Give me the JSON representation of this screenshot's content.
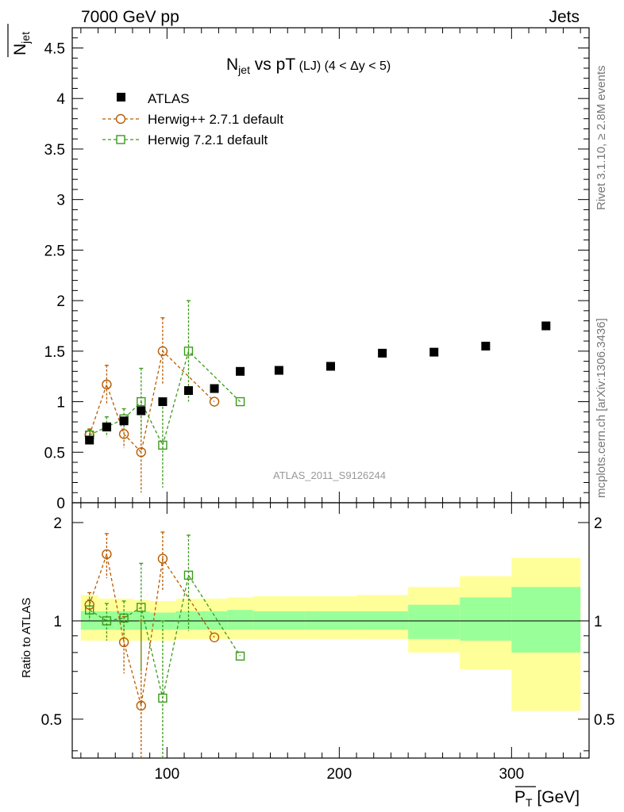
{
  "header": {
    "left": "7000 GeV pp",
    "right": "Jets"
  },
  "side": {
    "rivet": "Rivet 3.1.10, ≥ 2.8M events",
    "mcplots": "mcplots.cern.ch [arXiv:1306.3436]"
  },
  "watermark": "ATLAS_2011_S9126244",
  "colors": {
    "atlas": "#000000",
    "herwigpp": "#b85c00",
    "herwig7": "#3a9a1a",
    "band_inner": "#99ff99",
    "band_outer": "#ffff99"
  },
  "chart_data": [
    {
      "type": "scatter",
      "title_main": "N",
      "title_sub": "jet",
      "title_rest": " vs pT",
      "title_small": " (LJ)  (4 < Δy < 5)",
      "ylabel_main": "N",
      "ylabel_sub": "jet",
      "xlim": [
        45,
        345
      ],
      "ylim": [
        0,
        4.7
      ],
      "y_ticks": [
        0,
        0.5,
        1,
        1.5,
        2,
        2.5,
        3,
        3.5,
        4,
        4.5
      ],
      "y_tick_labels": [
        "0",
        "0.5",
        "1",
        "1.5",
        "2",
        "2.5",
        "3",
        "3.5",
        "4",
        "4.5"
      ],
      "legend_position": "top-left",
      "series": [
        {
          "name": "ATLAS",
          "marker": "square-filled",
          "color": "#000000",
          "x": [
            55,
            65,
            75,
            85,
            97.5,
            112.5,
            127.5,
            142.5,
            165,
            195,
            225,
            255,
            285,
            320
          ],
          "y": [
            0.62,
            0.75,
            0.81,
            0.91,
            1.0,
            1.11,
            1.13,
            1.3,
            1.31,
            1.35,
            1.48,
            1.49,
            1.55,
            1.75
          ]
        },
        {
          "name": "Herwig++ 2.7.1 default",
          "marker": "circle-open",
          "color": "#b85c00",
          "x": [
            55,
            65,
            75,
            85,
            97.5,
            127.5
          ],
          "y": [
            0.67,
            1.17,
            0.68,
            0.5,
            1.5,
            1.0
          ],
          "err": [
            0.06,
            0.19,
            0.14,
            0.4,
            0.33,
            0.0
          ]
        },
        {
          "name": "Herwig 7.2.1 default",
          "marker": "square-open",
          "color": "#3a9a1a",
          "x": [
            55,
            65,
            75,
            85,
            97.5,
            112.5,
            142.5
          ],
          "y": [
            0.67,
            0.75,
            0.83,
            1.0,
            0.57,
            1.5,
            1.0
          ],
          "err": [
            0.05,
            0.1,
            0.1,
            0.33,
            0.42,
            0.5,
            0.0
          ]
        }
      ]
    },
    {
      "type": "scatter",
      "ylabel": "Ratio to ATLAS",
      "xlabel_main": "P",
      "xlabel_sub": "T",
      "xlabel_rest": " [GeV]",
      "xlim": [
        45,
        345
      ],
      "ylim": [
        0.38,
        2.3
      ],
      "y_log": true,
      "y_ticks": [
        0.5,
        1,
        2
      ],
      "y_tick_labels": [
        "0.5",
        "1",
        "2"
      ],
      "x_ticks": [
        100,
        200,
        300
      ],
      "x_tick_labels": [
        "100",
        "200",
        "300"
      ],
      "reference_line": 1,
      "band": {
        "x_edges": [
          50,
          60,
          70,
          80,
          90,
          105,
          120,
          135,
          150,
          180,
          210,
          240,
          270,
          300,
          340
        ],
        "inner_low": [
          0.94,
          0.94,
          0.94,
          0.94,
          0.94,
          0.94,
          0.94,
          0.94,
          0.94,
          0.94,
          0.94,
          0.88,
          0.87,
          0.8
        ],
        "inner_high": [
          1.07,
          1.07,
          1.07,
          1.07,
          1.06,
          1.07,
          1.07,
          1.08,
          1.07,
          1.07,
          1.07,
          1.12,
          1.18,
          1.27
        ],
        "outer_low": [
          0.87,
          0.87,
          0.87,
          0.87,
          0.87,
          0.88,
          0.88,
          0.88,
          0.88,
          0.88,
          0.88,
          0.8,
          0.71,
          0.53
        ],
        "outer_high": [
          1.2,
          1.17,
          1.17,
          1.16,
          1.15,
          1.17,
          1.17,
          1.18,
          1.19,
          1.19,
          1.2,
          1.27,
          1.37,
          1.56
        ]
      },
      "series": [
        {
          "name": "Herwig++ 2.7.1 default",
          "marker": "circle-open",
          "color": "#b85c00",
          "x": [
            55,
            65,
            75,
            85,
            97.5,
            127.5
          ],
          "y": [
            1.12,
            1.6,
            0.86,
            0.55,
            1.55,
            0.89
          ],
          "err": [
            0.1,
            0.25,
            0.17,
            0.45,
            0.32,
            0.0
          ]
        },
        {
          "name": "Herwig 7.2.1 default",
          "marker": "square-open",
          "color": "#3a9a1a",
          "x": [
            55,
            65,
            75,
            85,
            97.5,
            112.5,
            142.5
          ],
          "y": [
            1.08,
            1.0,
            1.02,
            1.1,
            0.58,
            1.38,
            0.78
          ],
          "err": [
            0.08,
            0.13,
            0.13,
            0.4,
            0.42,
            0.45,
            0.0
          ]
        }
      ]
    }
  ]
}
